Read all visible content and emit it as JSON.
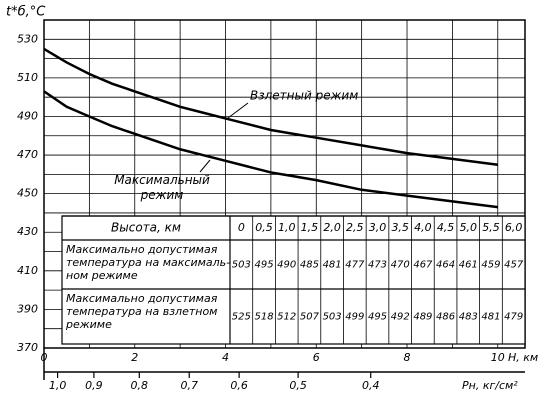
{
  "chart_data": {
    "type": "line",
    "y_label": "t*б,°C",
    "x_label": "H, км",
    "x": [
      0,
      0.5,
      1,
      1.5,
      2,
      2.5,
      3,
      3.5,
      4,
      4.5,
      5,
      5.5,
      6,
      7,
      8,
      9,
      10
    ],
    "series": [
      {
        "name": "Максимальный режим",
        "color": "#000000",
        "values": [
          503,
          495,
          490,
          485,
          481,
          477,
          473,
          470,
          467,
          464,
          461,
          459,
          457,
          452,
          449,
          446,
          443
        ]
      },
      {
        "name": "Взлетный режим",
        "color": "#000000",
        "values": [
          525,
          518,
          512,
          507,
          503,
          499,
          495,
          492,
          489,
          486,
          483,
          481,
          479,
          475,
          471,
          468,
          465
        ]
      }
    ],
    "xlim": [
      0,
      10.6
    ],
    "xticks": [
      0,
      2,
      4,
      6,
      8,
      10
    ],
    "ylim": [
      370,
      540
    ],
    "yticks": [
      370,
      390,
      410,
      430,
      450,
      470,
      490,
      510,
      530
    ],
    "grid": true,
    "pressure_axis": {
      "label": "Pн, кг/см²",
      "ticks": [
        {
          "h": 0.3,
          "label": "1,0"
        },
        {
          "h": 1.1,
          "label": "0,9"
        },
        {
          "h": 2.1,
          "label": "0,8"
        },
        {
          "h": 3.2,
          "label": "0,7"
        },
        {
          "h": 4.3,
          "label": "0,6"
        },
        {
          "h": 5.6,
          "label": "0,5"
        },
        {
          "h": 7.2,
          "label": "0,4"
        }
      ]
    },
    "table": {
      "header_label": "Высота, км",
      "heights": [
        "0",
        "0,5",
        "1,0",
        "1,5",
        "2,0",
        "2,5",
        "3,0",
        "3,5",
        "4,0",
        "4,5",
        "5,0",
        "5,5",
        "6,0"
      ],
      "rows": [
        [
          "Максимально допустимая",
          "температура на максималь-",
          "ном режиме"
        ],
        [
          "Максимально допустимая",
          "температура на взлетном",
          "режиме"
        ]
      ]
    }
  }
}
